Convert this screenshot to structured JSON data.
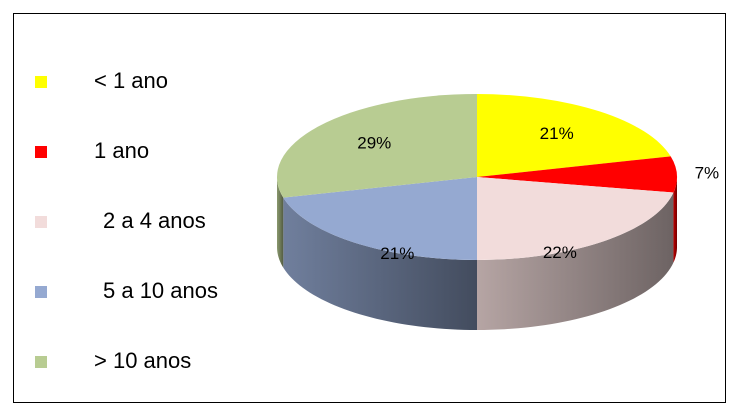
{
  "chart_data": {
    "type": "pie",
    "categories": [
      "< 1 ano",
      "1 ano",
      "2 a 4 anos",
      "5 a 10 anos",
      "> 10 anos"
    ],
    "values": [
      21,
      7,
      22,
      21,
      29
    ],
    "value_labels": [
      "21%",
      "7%",
      "22%",
      "21%",
      "29%"
    ],
    "colors": [
      "#ffff00",
      "#ff0000",
      "#f2dcdb",
      "#95a9d1",
      "#b8cc92"
    ],
    "legend": "left"
  }
}
